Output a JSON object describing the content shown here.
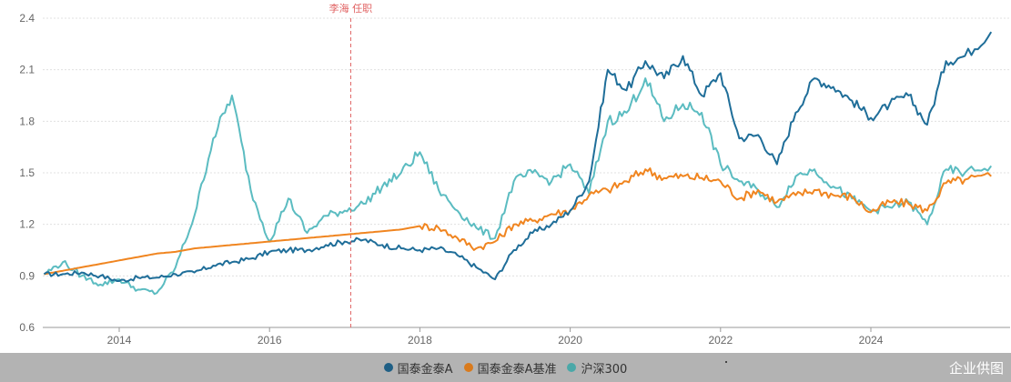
{
  "chart_data": {
    "type": "line",
    "title": "",
    "xlabel": "",
    "ylabel": "",
    "ylim": [
      0.6,
      2.4
    ],
    "yticks": [
      "0.6",
      "0.9",
      "1.2",
      "1.5",
      "1.8",
      "2.1",
      "2.4"
    ],
    "xticks": [
      "2014",
      "2016",
      "2018",
      "2020",
      "2022",
      "2024"
    ],
    "xrange": [
      2013.0,
      2025.6
    ],
    "grid": "horizontal dotted",
    "legend_position": "bottom",
    "annotation": {
      "label": "李海 任职",
      "x": 2017.08,
      "color": "#e06060",
      "style": "dashed vertical line"
    },
    "x": [
      2013.0,
      2013.25,
      2013.5,
      2013.75,
      2014.0,
      2014.25,
      2014.5,
      2014.75,
      2015.0,
      2015.25,
      2015.5,
      2015.75,
      2016.0,
      2016.25,
      2016.5,
      2016.75,
      2017.0,
      2017.25,
      2017.5,
      2017.75,
      2018.0,
      2018.25,
      2018.5,
      2018.75,
      2019.0,
      2019.25,
      2019.5,
      2019.75,
      2020.0,
      2020.25,
      2020.5,
      2020.75,
      2021.0,
      2021.25,
      2021.5,
      2021.75,
      2022.0,
      2022.25,
      2022.5,
      2022.75,
      2023.0,
      2023.25,
      2023.5,
      2023.75,
      2024.0,
      2024.25,
      2024.5,
      2024.75,
      2025.0,
      2025.25,
      2025.6
    ],
    "series": [
      {
        "name": "国泰金泰A",
        "color": "#1f6e99",
        "values": [
          0.91,
          0.91,
          0.92,
          0.9,
          0.87,
          0.89,
          0.89,
          0.91,
          0.92,
          0.96,
          0.98,
          1.0,
          1.04,
          1.05,
          1.05,
          1.08,
          1.1,
          1.11,
          1.08,
          1.06,
          1.05,
          1.06,
          1.02,
          0.95,
          0.88,
          1.05,
          1.15,
          1.2,
          1.28,
          1.45,
          2.1,
          1.98,
          2.15,
          2.05,
          2.18,
          1.95,
          2.08,
          1.7,
          1.72,
          1.55,
          1.85,
          2.05,
          2.0,
          1.92,
          1.82,
          1.9,
          1.95,
          1.78,
          2.15,
          2.18,
          2.32
        ]
      },
      {
        "name": "国泰金泰A基准",
        "color": "#f08520",
        "values": [
          0.91,
          0.93,
          0.95,
          0.97,
          0.99,
          1.01,
          1.03,
          1.04,
          1.06,
          1.07,
          1.08,
          1.09,
          1.1,
          1.11,
          1.12,
          1.13,
          1.14,
          1.15,
          1.16,
          1.17,
          1.19,
          1.18,
          1.12,
          1.06,
          1.1,
          1.2,
          1.22,
          1.26,
          1.28,
          1.37,
          1.4,
          1.45,
          1.52,
          1.47,
          1.48,
          1.47,
          1.45,
          1.35,
          1.4,
          1.33,
          1.37,
          1.4,
          1.37,
          1.36,
          1.27,
          1.33,
          1.32,
          1.28,
          1.44,
          1.46,
          1.48
        ]
      },
      {
        "name": "沪深300",
        "color": "#5bbcc1",
        "values": [
          0.91,
          0.98,
          0.9,
          0.85,
          0.88,
          0.82,
          0.8,
          0.95,
          1.25,
          1.7,
          1.95,
          1.4,
          1.1,
          1.35,
          1.15,
          1.25,
          1.28,
          1.32,
          1.42,
          1.5,
          1.62,
          1.4,
          1.28,
          1.18,
          1.12,
          1.45,
          1.5,
          1.45,
          1.55,
          1.38,
          1.8,
          1.85,
          2.05,
          1.8,
          1.9,
          1.85,
          1.55,
          1.45,
          1.4,
          1.3,
          1.48,
          1.52,
          1.42,
          1.35,
          1.28,
          1.3,
          1.33,
          1.2,
          1.52,
          1.5,
          1.54
        ]
      }
    ]
  },
  "legend": {
    "items": [
      {
        "label": "国泰金泰A",
        "color": "#1f6e99"
      },
      {
        "label": "国泰金泰A基准",
        "color": "#f08520"
      },
      {
        "label": "沪深300",
        "color": "#5bbcc1"
      }
    ]
  },
  "brand": "企业供图"
}
